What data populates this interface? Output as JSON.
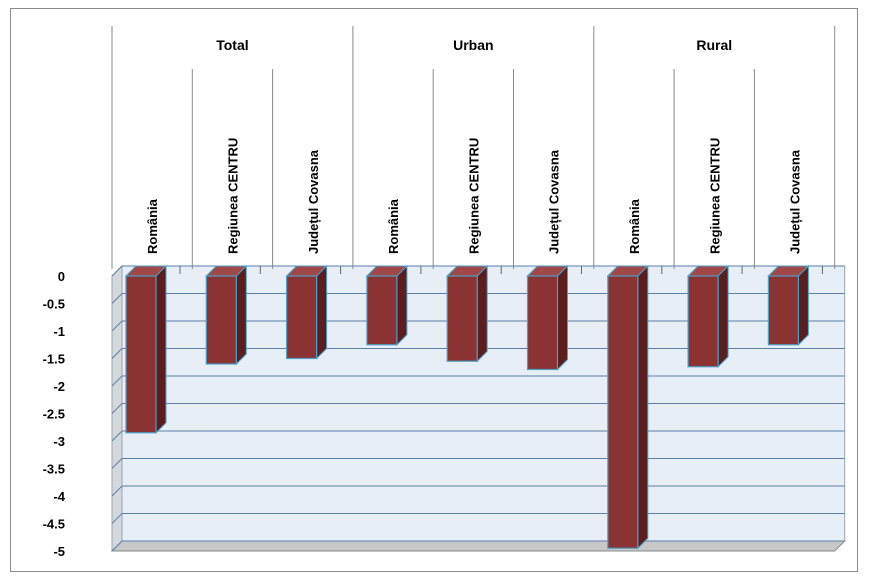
{
  "chart_data": {
    "type": "bar",
    "groups": [
      "Total",
      "Urban",
      "Rural"
    ],
    "categories": [
      "România",
      "Regiunea CENTRU",
      "Județul Covasna"
    ],
    "values": [
      [
        -2.85,
        -1.6,
        -1.5
      ],
      [
        -1.25,
        -1.55,
        -1.7
      ],
      [
        -4.95,
        -1.65,
        -1.25
      ]
    ],
    "ylim": [
      -5,
      0
    ],
    "yticks": [
      "0",
      "-0.5",
      "-1",
      "-1.5",
      "-2",
      "-2.5",
      "-3",
      "-3.5",
      "-4",
      "-4.5",
      "-5"
    ],
    "grid": true,
    "legend": "none",
    "colors": {
      "bar_front": "#8b3232",
      "bar_side": "#5a1e1e",
      "bar_top": "#a04848",
      "bar_edge": "#4aa0c8",
      "wall": "#e8eef6",
      "floor": "#c8c8c8",
      "grid": "#5a7fa8"
    }
  }
}
